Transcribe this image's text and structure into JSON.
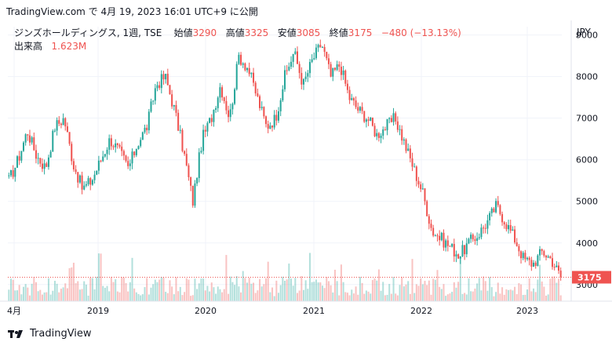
{
  "header": {
    "caption": "TradingView.com で 4月 19, 2023 16:01 UTC+9 に公開"
  },
  "legend": {
    "symbol": "ジンズホールディングス, 1週, TSE",
    "open_label": "始値",
    "open": "3290",
    "high_label": "高値",
    "high": "3325",
    "low_label": "安値",
    "low": "3085",
    "close_label": "終値",
    "close": "3175",
    "change": "−480 (−13.13%)",
    "volume_label": "出来高",
    "volume": "1.623M"
  },
  "currency": "JPY",
  "last_price_label": "3175",
  "footer": {
    "brand": "TradingView",
    "logo_icon": "tradingview-logo-icon"
  },
  "colors": {
    "up": "#26a69a",
    "down": "#ef5350",
    "grid": "#f0f3fa",
    "text": "#131722"
  },
  "chart_data": {
    "type": "candlestick",
    "title": "ジンズホールディングス, 1週, TSE",
    "ylabel": "JPY",
    "ylim": [
      2600,
      9200
    ],
    "y_ticks": [
      3000,
      4000,
      5000,
      6000,
      7000,
      8000,
      9000
    ],
    "x_ticks": [
      "4月",
      "2019",
      "2020",
      "2021",
      "2022",
      "2023"
    ],
    "last_close": 3175,
    "grid": true,
    "price_series": {
      "x": [
        "2018-04",
        "2018-05",
        "2018-06",
        "2018-07",
        "2018-08",
        "2018-09",
        "2018-10",
        "2018-11",
        "2018-12",
        "2019-01",
        "2019-02",
        "2019-03",
        "2019-04",
        "2019-05",
        "2019-06",
        "2019-07",
        "2019-08",
        "2019-09",
        "2019-10",
        "2019-11",
        "2019-12",
        "2020-01",
        "2020-02",
        "2020-03",
        "2020-04",
        "2020-05",
        "2020-06",
        "2020-07",
        "2020-08",
        "2020-09",
        "2020-10",
        "2020-11",
        "2020-12",
        "2021-01",
        "2021-02",
        "2021-03",
        "2021-04",
        "2021-05",
        "2021-06",
        "2021-07",
        "2021-08",
        "2021-09",
        "2021-10",
        "2021-11",
        "2021-12",
        "2022-01",
        "2022-02",
        "2022-03",
        "2022-04",
        "2022-05",
        "2022-06",
        "2022-07",
        "2022-08",
        "2022-09",
        "2022-10",
        "2022-11",
        "2022-12",
        "2023-01",
        "2023-02",
        "2023-03",
        "2023-04"
      ],
      "close": [
        5500,
        6000,
        6700,
        6100,
        5800,
        6800,
        7000,
        5900,
        5300,
        5500,
        6000,
        6500,
        6200,
        5800,
        6400,
        6800,
        7800,
        8000,
        7200,
        6200,
        5000,
        6500,
        7000,
        7800,
        7000,
        8500,
        8200,
        7500,
        6800,
        7000,
        8000,
        8600,
        7800,
        8400,
        8800,
        8000,
        8300,
        7500,
        7200,
        7000,
        6600,
        6800,
        7000,
        6400,
        5800,
        5200,
        4300,
        4100,
        3900,
        3700,
        4000,
        4200,
        4500,
        4900,
        4500,
        4100,
        3600,
        3500,
        3800,
        3600,
        3175
      ]
    },
    "volume_label": "出来高",
    "volume": 1623000
  }
}
